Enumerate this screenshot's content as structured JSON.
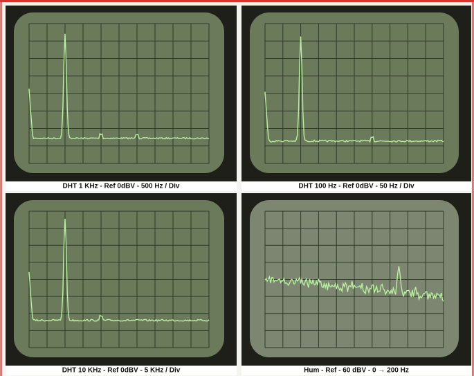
{
  "panels": [
    {
      "caption": "DHT 1 KHz - Ref 0dBV - 500 Hz / Div"
    },
    {
      "caption": "DHT 100 Hz - Ref 0dBV - 50 Hz / Div"
    },
    {
      "caption": "DHT 10 KHz - Ref 0dBV - 5 KHz / Div"
    },
    {
      "caption": "Hum - Ref - 60 dBV - 0 → 200 Hz"
    }
  ]
}
